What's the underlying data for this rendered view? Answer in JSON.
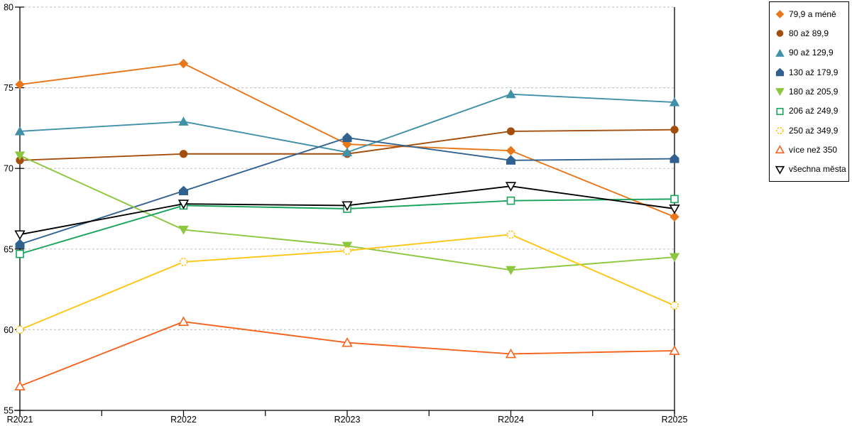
{
  "chart_data": {
    "type": "line",
    "title": "",
    "x_categories": [
      "R2021",
      "R2022",
      "R2023",
      "R2024",
      "R2025"
    ],
    "y_ticks": [
      55,
      60,
      65,
      70,
      75,
      80
    ],
    "ylim": [
      55,
      80
    ],
    "grid": "horizontal-dashed",
    "gridline_color": "#C6C6C6",
    "axis_color": "#000000",
    "legend_position": "right",
    "legend_bordered": true,
    "series": [
      {
        "name": "79,9 a méně",
        "color": "#E8761B",
        "marker": "diamond",
        "marker_fill": "solid",
        "values": [
          75.2,
          76.5,
          71.5,
          71.1,
          67.0
        ]
      },
      {
        "name": "80 až 89,9",
        "color": "#A44E0D",
        "marker": "circle",
        "marker_fill": "solid",
        "values": [
          70.5,
          70.9,
          70.9,
          72.3,
          72.4
        ]
      },
      {
        "name": "90 až 129,9",
        "color": "#4090A8",
        "marker": "triangle-up",
        "marker_fill": "solid",
        "values": [
          72.3,
          72.9,
          71.0,
          74.6,
          74.1
        ]
      },
      {
        "name": "130 až 179,9",
        "color": "#31618F",
        "marker": "pentagon",
        "marker_fill": "solid",
        "values": [
          65.3,
          68.6,
          71.9,
          70.5,
          70.6
        ]
      },
      {
        "name": "180 až 205,9",
        "color": "#8DC63F",
        "marker": "triangle-down",
        "marker_fill": "solid",
        "values": [
          70.8,
          66.2,
          65.2,
          63.7,
          64.5
        ]
      },
      {
        "name": "206 až 249,9",
        "color": "#18A35C",
        "marker": "square",
        "marker_fill": "open",
        "values": [
          64.7,
          67.7,
          67.5,
          68.0,
          68.1
        ]
      },
      {
        "name": "250 až 349,9",
        "color": "#FFC513",
        "marker": "circle",
        "marker_fill": "open",
        "values": [
          60.0,
          64.2,
          64.9,
          65.9,
          61.5
        ]
      },
      {
        "name": "více než 350",
        "color": "#F4641E",
        "marker": "triangle-up",
        "marker_fill": "open",
        "values": [
          56.5,
          60.5,
          59.2,
          58.5,
          58.7
        ]
      },
      {
        "name": "všechna města",
        "color": "#000000",
        "marker": "triangle-down",
        "marker_fill": "open",
        "values": [
          65.9,
          67.8,
          67.7,
          68.9,
          67.5
        ]
      }
    ]
  }
}
